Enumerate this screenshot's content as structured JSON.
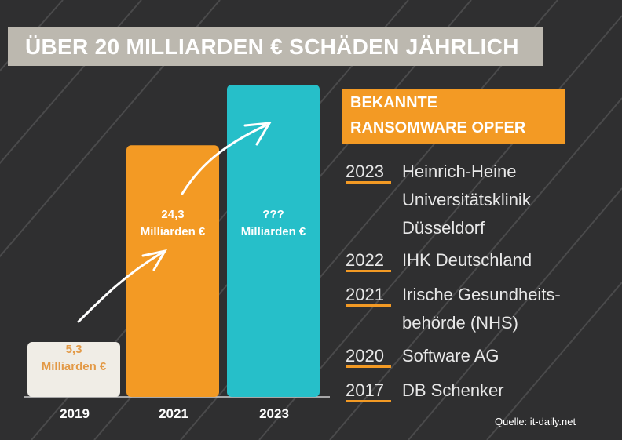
{
  "title": "ÜBER 20 MILLIARDEN € SCHÄDEN JÄHRLICH",
  "chart_data": {
    "type": "bar",
    "categories": [
      "2019",
      "2021",
      "2023"
    ],
    "values": [
      5.3,
      24.3,
      null
    ],
    "value_labels": [
      [
        "5,3",
        "Milliarden €"
      ],
      [
        "24,3",
        "Milliarden €"
      ],
      [
        "???",
        "Milliarden €"
      ]
    ],
    "colors": [
      "#f0ede6",
      "#f39a24",
      "#26bfc9"
    ]
  },
  "victims": {
    "heading": [
      "BEKANNTE",
      "RANSOMWARE OPFER"
    ],
    "items": [
      {
        "year": "2023",
        "lines": [
          "Heinrich-Heine",
          "Universitätsklinik",
          "Düsseldorf"
        ]
      },
      {
        "year": "2022",
        "lines": [
          "IHK Deutschland"
        ]
      },
      {
        "year": "2021",
        "lines": [
          "Irische Gesundheits-",
          "behörde (NHS)"
        ]
      },
      {
        "year": "2020",
        "lines": [
          "Software AG"
        ]
      },
      {
        "year": "2017",
        "lines": [
          "DB Schenker"
        ]
      }
    ]
  },
  "source": "Quelle: it-daily.net"
}
